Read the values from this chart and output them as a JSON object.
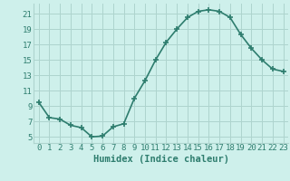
{
  "x": [
    0,
    1,
    2,
    3,
    4,
    5,
    6,
    7,
    8,
    9,
    10,
    11,
    12,
    13,
    14,
    15,
    16,
    17,
    18,
    19,
    20,
    21,
    22,
    23
  ],
  "y": [
    9.5,
    7.5,
    7.3,
    6.5,
    6.2,
    5.0,
    5.1,
    6.3,
    6.7,
    10.0,
    12.3,
    15.0,
    17.3,
    19.0,
    20.5,
    21.3,
    21.5,
    21.3,
    20.5,
    18.3,
    16.5,
    15.0,
    13.8,
    13.5
  ],
  "line_color": "#2e7d6e",
  "marker": "+",
  "marker_size": 4,
  "marker_lw": 1.2,
  "bg_color": "#cef0eb",
  "grid_color": "#aed4ce",
  "xlabel": "Humidex (Indice chaleur)",
  "xlabel_color": "#2e7d6e",
  "ylabel_ticks": [
    5,
    7,
    9,
    11,
    13,
    15,
    17,
    19,
    21
  ],
  "xtick_labels": [
    "0",
    "1",
    "2",
    "3",
    "4",
    "5",
    "6",
    "7",
    "8",
    "9",
    "10",
    "11",
    "12",
    "13",
    "14",
    "15",
    "16",
    "17",
    "18",
    "19",
    "20",
    "21",
    "22",
    "23"
  ],
  "ylim": [
    4.2,
    22.3
  ],
  "xlim": [
    -0.5,
    23.5
  ],
  "dpi": 100,
  "tick_label_color": "#2e7d6e",
  "tick_label_fontsize": 6.5,
  "xlabel_fontsize": 7.5,
  "linewidth": 1.2
}
